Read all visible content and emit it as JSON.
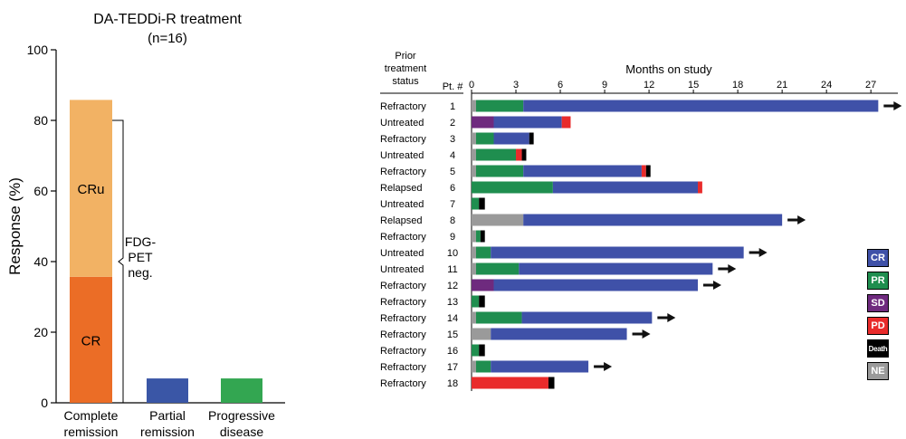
{
  "colors": {
    "cr": "#3F51A8",
    "pr": "#1F8E4F",
    "sd": "#6E2A7E",
    "pd": "#E92B2B",
    "death": "#000000",
    "ne": "#9A9A9A",
    "crPanel": "#EB6D26",
    "cruPanel": "#F2B264",
    "partial": "#3A56A6",
    "progressive": "#33A651"
  },
  "chart_data": [
    {
      "type": "bar",
      "title": "DA-TEDDi-R treatment",
      "subtitle": "(n=16)",
      "ylabel": "Response (%)",
      "xlabel": "",
      "ylim": [
        0,
        100
      ],
      "yticks": [
        "0",
        "20",
        "40",
        "60",
        "80",
        "100"
      ],
      "categories": [
        [
          "Complete",
          "remission"
        ],
        [
          "Partial",
          "remission"
        ],
        [
          "Progressive",
          "disease"
        ]
      ],
      "stack": [
        {
          "category": 0,
          "from": 0,
          "to": 35.7,
          "label": "CR",
          "color": "#EB6D26"
        },
        {
          "category": 0,
          "from": 35.7,
          "to": 85.8,
          "label": "CRu",
          "color": "#F2B264"
        },
        {
          "category": 1,
          "from": 0,
          "to": 6.9,
          "label": "",
          "color": "#3A56A6"
        },
        {
          "category": 2,
          "from": 0,
          "to": 6.9,
          "label": "",
          "color": "#33A651"
        }
      ],
      "bracket": {
        "from": 0,
        "to": 80,
        "label": [
          "FDG-",
          "PET",
          "neg."
        ]
      }
    },
    {
      "type": "bar",
      "orientation": "horizontal-swimmer",
      "title": "Months on study",
      "status_header": [
        "Prior",
        "treatment",
        "status"
      ],
      "patient_header": "Pt. #",
      "xlim": [
        0,
        27.9
      ],
      "xticks": [
        "0",
        "3",
        "6",
        "9",
        "12",
        "15",
        "18",
        "21",
        "24",
        "27"
      ],
      "patients": [
        {
          "id": "1",
          "status": "Refractory",
          "arrow": true,
          "segments": [
            [
              "NE",
              0,
              0.3
            ],
            [
              "PR",
              0.3,
              3.5
            ],
            [
              "CR",
              3.5,
              27.5
            ]
          ]
        },
        {
          "id": "2",
          "status": "Untreated",
          "arrow": false,
          "segments": [
            [
              "SD",
              0,
              1.5
            ],
            [
              "CR",
              1.5,
              6.1
            ],
            [
              "PD",
              6.1,
              6.7
            ]
          ]
        },
        {
          "id": "3",
          "status": "Refractory",
          "arrow": false,
          "segments": [
            [
              "NE",
              0,
              0.3
            ],
            [
              "PR",
              0.3,
              1.5
            ],
            [
              "CR",
              1.5,
              3.9
            ],
            [
              "Death",
              3.9,
              4.2
            ]
          ]
        },
        {
          "id": "4",
          "status": "Untreated",
          "arrow": false,
          "segments": [
            [
              "NE",
              0,
              0.3
            ],
            [
              "PR",
              0.3,
              3.0
            ],
            [
              "PD",
              3.0,
              3.4
            ],
            [
              "Death",
              3.4,
              3.7
            ]
          ]
        },
        {
          "id": "5",
          "status": "Refractory",
          "arrow": false,
          "segments": [
            [
              "NE",
              0,
              0.3
            ],
            [
              "PR",
              0.3,
              3.5
            ],
            [
              "CR",
              3.5,
              11.5
            ],
            [
              "PD",
              11.5,
              11.8
            ],
            [
              "Death",
              11.8,
              12.1
            ]
          ]
        },
        {
          "id": "6",
          "status": "Relapsed",
          "arrow": false,
          "segments": [
            [
              "PR",
              0,
              5.5
            ],
            [
              "CR",
              5.5,
              15.3
            ],
            [
              "PD",
              15.3,
              15.6
            ]
          ]
        },
        {
          "id": "7",
          "status": "Untreated",
          "arrow": false,
          "segments": [
            [
              "PR",
              0,
              0.5
            ],
            [
              "Death",
              0.5,
              0.9
            ]
          ]
        },
        {
          "id": "8",
          "status": "Relapsed",
          "arrow": true,
          "segments": [
            [
              "NE",
              0,
              3.5
            ],
            [
              "CR",
              3.5,
              21.0
            ]
          ]
        },
        {
          "id": "9",
          "status": "Refractory",
          "arrow": false,
          "segments": [
            [
              "NE",
              0,
              0.3
            ],
            [
              "PR",
              0.3,
              0.6
            ],
            [
              "Death",
              0.6,
              0.9
            ]
          ]
        },
        {
          "id": "10",
          "status": "Untreated",
          "arrow": true,
          "segments": [
            [
              "NE",
              0,
              0.3
            ],
            [
              "PR",
              0.3,
              1.3
            ],
            [
              "CR",
              1.3,
              18.4
            ]
          ]
        },
        {
          "id": "11",
          "status": "Untreated",
          "arrow": true,
          "segments": [
            [
              "NE",
              0,
              0.3
            ],
            [
              "PR",
              0.3,
              3.2
            ],
            [
              "CR",
              3.2,
              16.3
            ]
          ]
        },
        {
          "id": "12",
          "status": "Refractory",
          "arrow": true,
          "segments": [
            [
              "SD",
              0,
              1.5
            ],
            [
              "CR",
              1.5,
              15.3
            ]
          ]
        },
        {
          "id": "13",
          "status": "Refractory",
          "arrow": false,
          "segments": [
            [
              "PR",
              0,
              0.5
            ],
            [
              "Death",
              0.5,
              0.9
            ]
          ]
        },
        {
          "id": "14",
          "status": "Refractory",
          "arrow": true,
          "segments": [
            [
              "NE",
              0,
              0.3
            ],
            [
              "PR",
              0.3,
              3.4
            ],
            [
              "CR",
              3.4,
              12.2
            ]
          ]
        },
        {
          "id": "15",
          "status": "Refractory",
          "arrow": true,
          "segments": [
            [
              "NE",
              0,
              1.3
            ],
            [
              "CR",
              1.3,
              10.5
            ]
          ]
        },
        {
          "id": "16",
          "status": "Refractory",
          "arrow": false,
          "segments": [
            [
              "PR",
              0,
              0.5
            ],
            [
              "Death",
              0.5,
              0.9
            ]
          ]
        },
        {
          "id": "17",
          "status": "Refractory",
          "arrow": true,
          "segments": [
            [
              "NE",
              0,
              0.3
            ],
            [
              "PR",
              0.3,
              1.3
            ],
            [
              "CR",
              1.3,
              7.9
            ]
          ]
        },
        {
          "id": "18",
          "status": "Refractory",
          "arrow": false,
          "segments": [
            [
              "PD",
              0,
              5.2
            ],
            [
              "Death",
              5.2,
              5.6
            ]
          ]
        }
      ],
      "legend": [
        {
          "key": "CR",
          "label": "CR"
        },
        {
          "key": "PR",
          "label": "PR"
        },
        {
          "key": "SD",
          "label": "SD"
        },
        {
          "key": "PD",
          "label": "PD"
        },
        {
          "key": "Death",
          "label": "Death"
        },
        {
          "key": "NE",
          "label": "NE"
        }
      ]
    }
  ]
}
